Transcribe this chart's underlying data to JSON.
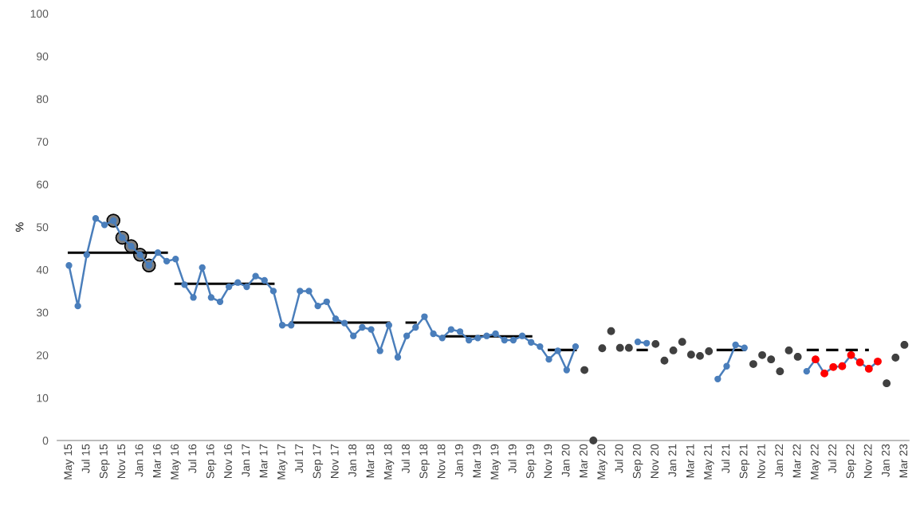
{
  "chart_data": {
    "type": "line",
    "ylabel": "%",
    "ylim": [
      0,
      100
    ],
    "yticks": [
      0,
      10,
      20,
      30,
      40,
      50,
      60,
      70,
      80,
      90,
      100
    ],
    "grid": false,
    "legend": false,
    "categories": [
      "May 15",
      null,
      "Jul 15",
      null,
      "Sep 15",
      null,
      "Nov 15",
      null,
      "Jan 16",
      null,
      "Mar 16",
      null,
      "May 16",
      null,
      "Jul 16",
      null,
      "Sep 16",
      null,
      "Nov 16",
      null,
      "Jan 17",
      null,
      "Mar 17",
      null,
      "May 17",
      null,
      "Jul 17",
      null,
      "Sep 17",
      null,
      "Nov 17",
      null,
      "Jan 18",
      null,
      "Mar 18",
      null,
      "May 18",
      null,
      "Jul 18",
      null,
      "Sep 18",
      null,
      "Nov 18",
      null,
      "Jan 19",
      null,
      "Mar 19",
      null,
      "May 19",
      null,
      "Jul 19",
      null,
      "Sep 19",
      null,
      "Nov 19",
      null,
      "Jan 20",
      null,
      "Mar 20",
      null,
      "May 20",
      null,
      "Jul 20",
      null,
      "Sep 20",
      null,
      "Nov 20",
      null,
      "Jan 21",
      null,
      "Mar 21",
      null,
      "May 21",
      null,
      "Jul 21",
      null,
      "Sep 21",
      null,
      "Nov 21",
      null,
      "Jan 22",
      null,
      "Mar 22",
      null,
      "May 22",
      null,
      "Jul 22",
      null,
      "Sep 22",
      null,
      "Nov 22",
      null,
      "Jan 23",
      null,
      "Mar 23"
    ],
    "series": [
      {
        "type": "scatter",
        "color": "#7f7f7f",
        "marker": "circle",
        "values": [
          null,
          null,
          null,
          null,
          null,
          51.5,
          47.5,
          45.5,
          43.5,
          41,
          null,
          null,
          null,
          null,
          null,
          null,
          null,
          null,
          null,
          null,
          null,
          null,
          null,
          null,
          null,
          null,
          null,
          null,
          null,
          null,
          null,
          null,
          null,
          null,
          null,
          null,
          null,
          null,
          null,
          null,
          null,
          null,
          null,
          null,
          null,
          null,
          null,
          null,
          null,
          null,
          null,
          null,
          null,
          null,
          null,
          null,
          null,
          null,
          null,
          null,
          null,
          null,
          null,
          null,
          null,
          null,
          null,
          null,
          null,
          null,
          null,
          null,
          null,
          null,
          null,
          null,
          null,
          null,
          null,
          null,
          null,
          null,
          null,
          null,
          null,
          null,
          null,
          null,
          null,
          null,
          null,
          null,
          null,
          null,
          null
        ]
      },
      {
        "type": "line",
        "color": "#000000",
        "marker": "none",
        "line_style": "solid",
        "values": [
          44,
          44,
          44,
          44,
          44,
          44,
          44,
          44,
          44,
          44,
          44,
          44,
          null,
          null,
          null,
          null,
          null,
          null,
          null,
          null,
          null,
          null,
          null,
          null,
          null,
          null,
          null,
          null,
          null,
          null,
          null,
          null,
          null,
          null,
          null,
          null,
          null,
          null,
          null,
          null,
          null,
          null,
          null,
          null,
          null,
          null,
          null,
          null,
          null,
          null,
          null,
          null,
          null,
          null,
          null,
          null,
          null,
          null,
          null,
          null,
          null,
          null,
          null,
          null,
          null,
          null,
          null,
          null,
          null,
          null,
          null,
          null,
          null,
          null,
          null,
          null,
          null,
          null,
          null,
          null,
          null,
          null,
          null,
          null,
          null,
          null,
          null,
          null,
          null,
          null,
          null,
          null,
          null,
          null,
          null
        ]
      },
      {
        "type": "line",
        "color": "#000000",
        "marker": "none",
        "line_style": "solid",
        "values": [
          null,
          null,
          null,
          null,
          null,
          null,
          null,
          null,
          null,
          null,
          null,
          null,
          36.7,
          36.7,
          36.7,
          36.7,
          36.7,
          36.7,
          36.7,
          36.7,
          36.7,
          36.7,
          36.7,
          36.7,
          null,
          27.6,
          27.6,
          27.6,
          27.6,
          27.6,
          27.6,
          27.6,
          27.6,
          27.6,
          27.6,
          27.6,
          27.6,
          null,
          27.6,
          27.6,
          null,
          null,
          24.4,
          24.4,
          24.4,
          24.4,
          24.4,
          24.4,
          24.4,
          24.4,
          24.4,
          24.4,
          24.4,
          null,
          21.2,
          21.2,
          21.2,
          21.2,
          null,
          null,
          null,
          null,
          null,
          null,
          21.2,
          21.2,
          null,
          null,
          null,
          null,
          null,
          null,
          null,
          21.2,
          21.2,
          21.2,
          21.2,
          null,
          null,
          null,
          null,
          null,
          null,
          null,
          null,
          null,
          null,
          null,
          null,
          null,
          null,
          null,
          null,
          null,
          null
        ]
      },
      {
        "type": "line",
        "color": "#000000",
        "marker": "none",
        "line_style": "dashed",
        "values": [
          null,
          null,
          null,
          null,
          null,
          null,
          null,
          null,
          null,
          null,
          null,
          null,
          null,
          null,
          null,
          null,
          null,
          null,
          null,
          null,
          null,
          null,
          null,
          null,
          null,
          null,
          null,
          null,
          null,
          null,
          null,
          null,
          null,
          null,
          null,
          null,
          null,
          null,
          null,
          null,
          null,
          null,
          null,
          null,
          null,
          null,
          null,
          null,
          null,
          null,
          null,
          null,
          null,
          null,
          null,
          null,
          null,
          null,
          null,
          null,
          null,
          null,
          null,
          null,
          null,
          null,
          null,
          null,
          null,
          null,
          null,
          null,
          null,
          null,
          null,
          null,
          null,
          null,
          null,
          null,
          null,
          null,
          null,
          21.2,
          21.2,
          21.2,
          21.2,
          21.2,
          21.2,
          21.2,
          21.2,
          null,
          null,
          null,
          null
        ]
      },
      {
        "color": "#4a7ebb",
        "marker": "circle",
        "line_style": "solid",
        "values": [
          41,
          31.5,
          43.5,
          52,
          50.5,
          51.5,
          47.5,
          45.5,
          43.5,
          41,
          44,
          42,
          42.5,
          36.5,
          33.5,
          40.5,
          33.5,
          32.5,
          36,
          37,
          36,
          38.5,
          37.5,
          35,
          27,
          27,
          35,
          35,
          31.5,
          32.5,
          28.5,
          27.5,
          24.5,
          26.5,
          26,
          21,
          27,
          19.5,
          24.5,
          26.5,
          29,
          25,
          24,
          26,
          25.5,
          23.5,
          24,
          24.5,
          25,
          23.5,
          23.5,
          24.5,
          23,
          22,
          19,
          21,
          16.5,
          22,
          null,
          null,
          null,
          null,
          null,
          null,
          23.1,
          22.8,
          null,
          null,
          null,
          null,
          null,
          null,
          null,
          14.4,
          17.4,
          22.4,
          21.7,
          null,
          null,
          null,
          null,
          null,
          null,
          16.2,
          19.0,
          15.7,
          17.2,
          17.4,
          20.0,
          18.3,
          16.8,
          18.5,
          null,
          null,
          null
        ]
      },
      {
        "type": "scatter",
        "color": "#404040",
        "marker": "circle",
        "values": [
          null,
          null,
          null,
          null,
          null,
          null,
          null,
          null,
          null,
          null,
          null,
          null,
          null,
          null,
          null,
          null,
          null,
          null,
          null,
          null,
          null,
          null,
          null,
          null,
          null,
          null,
          null,
          null,
          null,
          null,
          null,
          null,
          null,
          null,
          null,
          null,
          null,
          null,
          null,
          null,
          null,
          null,
          null,
          null,
          null,
          null,
          null,
          null,
          null,
          null,
          null,
          null,
          null,
          null,
          null,
          null,
          null,
          null,
          16.5,
          0,
          21.6,
          25.6,
          21.7,
          21.7,
          null,
          null,
          22.6,
          18.7,
          21.1,
          23.1,
          20.1,
          19.8,
          20.9,
          null,
          null,
          null,
          null,
          17.9,
          20.0,
          19.0,
          16.2,
          21.1,
          19.6,
          null,
          null,
          null,
          null,
          null,
          null,
          null,
          null,
          null,
          13.4,
          19.4,
          22.4
        ]
      },
      {
        "type": "scatter",
        "color": "#ff0000",
        "marker": "circle",
        "values": [
          null,
          null,
          null,
          null,
          null,
          null,
          null,
          null,
          null,
          null,
          null,
          null,
          null,
          null,
          null,
          null,
          null,
          null,
          null,
          null,
          null,
          null,
          null,
          null,
          null,
          null,
          null,
          null,
          null,
          null,
          null,
          null,
          null,
          null,
          null,
          null,
          null,
          null,
          null,
          null,
          null,
          null,
          null,
          null,
          null,
          null,
          null,
          null,
          null,
          null,
          null,
          null,
          null,
          null,
          null,
          null,
          null,
          null,
          null,
          null,
          null,
          null,
          null,
          null,
          null,
          null,
          null,
          null,
          null,
          null,
          null,
          null,
          null,
          null,
          null,
          null,
          null,
          null,
          null,
          null,
          null,
          null,
          null,
          null,
          19.0,
          15.7,
          17.2,
          17.4,
          20.0,
          18.3,
          16.8,
          18.5,
          null,
          null,
          null
        ]
      }
    ]
  }
}
